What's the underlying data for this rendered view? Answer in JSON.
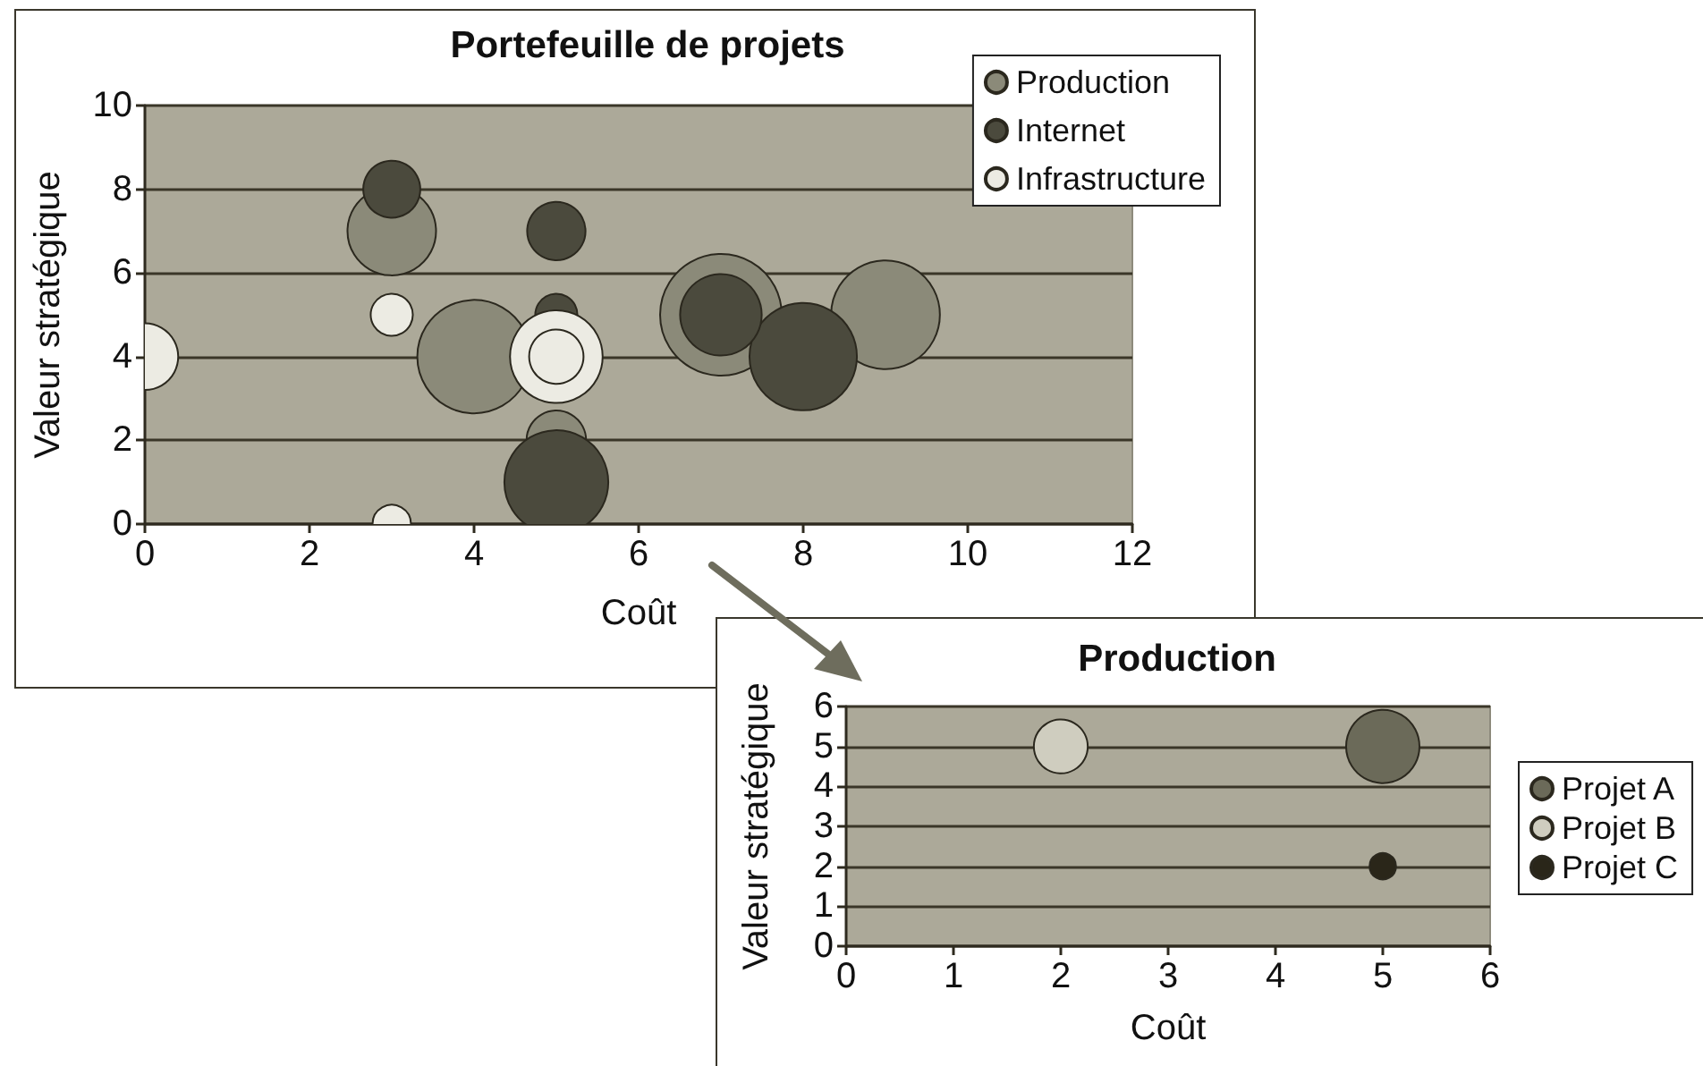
{
  "chart_data": [
    {
      "type": "bubble",
      "title": "Portefeuille de projets",
      "xlabel": "Coût",
      "ylabel": "Valeur stratégique",
      "xlim": [
        0,
        12
      ],
      "xticks": [
        0,
        2,
        4,
        6,
        8,
        10,
        12
      ],
      "ylim": [
        0,
        10
      ],
      "yticks": [
        0,
        2,
        4,
        6,
        8,
        10
      ],
      "grid": "y",
      "legend": "top right",
      "marker": "circle",
      "series": [
        {
          "name": "Production",
          "color": "#8b8a79",
          "x": [
            3,
            4,
            5,
            7,
            9
          ],
          "values": [
            7,
            4,
            2,
            5,
            5
          ],
          "sizes": [
            0.53,
            0.87,
            0.24,
            1,
            0.8
          ]
        },
        {
          "name": "Internet",
          "color": "#4b4a3d",
          "x": [
            3,
            5,
            5,
            5,
            7,
            8
          ],
          "values": [
            8,
            7,
            5,
            1,
            5,
            4
          ],
          "sizes": [
            0.22,
            0.23,
            0.12,
            0.73,
            0.45,
            0.78
          ]
        },
        {
          "name": "Infrastructure",
          "color": "#ecebe3",
          "x": [
            0,
            3,
            3,
            5,
            5
          ],
          "values": [
            4,
            5,
            0,
            4,
            4
          ],
          "sizes": [
            0.3,
            0.12,
            0.1,
            0.2,
            0.58
          ]
        }
      ]
    },
    {
      "type": "bubble",
      "title": "Production",
      "xlabel": "Coût",
      "ylabel": "Valeur stratégique",
      "xlim": [
        0,
        6
      ],
      "xticks": [
        0,
        1,
        2,
        3,
        4,
        5,
        6
      ],
      "ylim": [
        0,
        6
      ],
      "yticks": [
        0,
        1,
        2,
        3,
        4,
        5,
        6
      ],
      "grid": "y",
      "legend": "right",
      "marker": "circle",
      "series": [
        {
          "name": "Projet A",
          "color": "#6b6a59",
          "x": [
            5
          ],
          "values": [
            5
          ],
          "sizes": [
            1
          ]
        },
        {
          "name": "Projet B",
          "color": "#cfcdbf",
          "x": [
            2
          ],
          "values": [
            5
          ],
          "sizes": [
            0.54
          ]
        },
        {
          "name": "Projet C",
          "color": "#2a2619",
          "x": [
            5
          ],
          "values": [
            2
          ],
          "sizes": [
            0.13
          ]
        }
      ]
    }
  ]
}
